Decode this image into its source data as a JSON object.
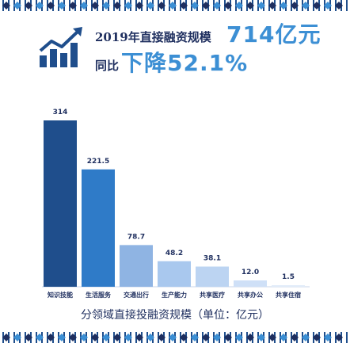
{
  "header": {
    "line1_label": "2019年直接融资规模",
    "line1_value": "714亿元",
    "line2_label": "同比",
    "line2_value": "下降52.1%"
  },
  "chart_data": {
    "type": "bar",
    "categories": [
      "知识技能",
      "生活服务",
      "交通出行",
      "生产能力",
      "共享医疗",
      "共享办公",
      "共享住宿"
    ],
    "values": [
      314,
      221.5,
      78.7,
      48.2,
      38.1,
      12.0,
      1.5
    ],
    "value_labels": [
      "314",
      "221.5",
      "78.7",
      "48.2",
      "38.1",
      "12.0",
      "1.5"
    ],
    "title": "",
    "xlabel": "分领域直接投融资规模（单位：亿元）",
    "ylabel": "",
    "ylim": [
      0,
      314
    ],
    "colors": [
      "#1f4e8c",
      "#2f7bc8",
      "#8fb4e3",
      "#a9c8ee",
      "#bcd4f2",
      "#cfe0f7",
      "#e2ecf9"
    ],
    "grid": false,
    "legend": "none"
  },
  "theme": {
    "accent": "#3c8fd4",
    "dark": "#1f2f5f"
  }
}
